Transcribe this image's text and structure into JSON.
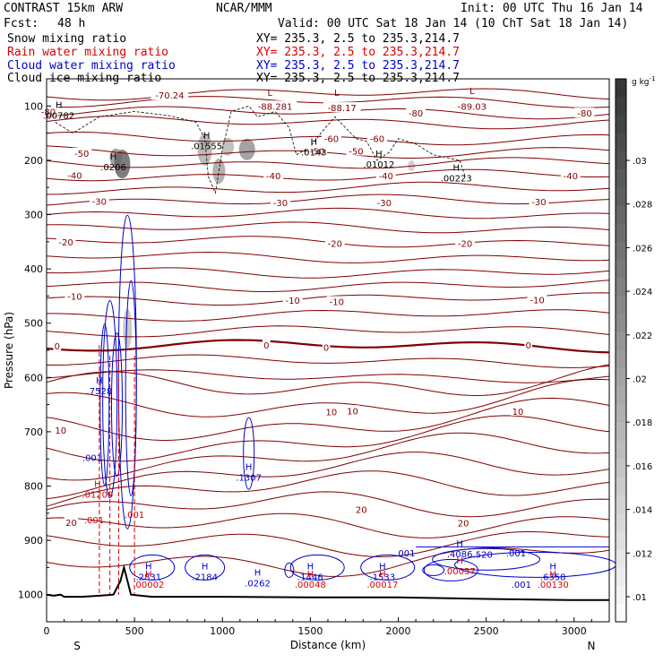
{
  "header": {
    "model": "CONTRAST 15km ARW",
    "org": "NCAR/MMM",
    "init": "Init: 00 UTC Thu 16 Jan 14",
    "fcst_label": "Fcst:",
    "fcst_value": "48 h",
    "valid": "Valid: 00 UTC Sat 18 Jan 14 (10 ChT Sat 18 Jan 14)",
    "fields": [
      {
        "name": "Snow mixing ratio",
        "xy": "XY= 235.3,  2.5 to 235.3,214.7",
        "color": "#000000"
      },
      {
        "name": "Rain water mixing ratio",
        "xy": "XY= 235.3,  2.5 to 235.3,214.7",
        "color": "#dd0000"
      },
      {
        "name": "Cloud water mixing ratio",
        "xy": "XY= 235.3,  2.5 to 235.3,214.7",
        "color": "#0000cc"
      },
      {
        "name": "Cloud ice mixing ratio",
        "xy": "XY= 235.3,  2.5 to 235.3,214.7",
        "color": "#000000"
      }
    ]
  },
  "chart_data": {
    "type": "cross-section",
    "xlabel": "Distance (km)",
    "ylabel": "Pressure (hPa)",
    "xlim": [
      0,
      3200
    ],
    "ylim": [
      1050,
      50
    ],
    "x_ticks": [
      0,
      500,
      1000,
      1500,
      2000,
      2500,
      3000
    ],
    "y_ticks": [
      100,
      200,
      300,
      400,
      500,
      600,
      700,
      800,
      900,
      1000
    ],
    "end_labels": {
      "left": "S",
      "right": "N"
    },
    "colorbar": {
      "unit": "g kg",
      "unit_exp": "-1",
      "ticks": [
        ".01",
        ".012",
        ".014",
        ".016",
        ".018",
        ".02",
        ".022",
        ".024",
        ".026",
        ".028",
        ".03"
      ]
    },
    "colors": {
      "temperature": "#800000",
      "cloud_water": "#0000cc",
      "rain": "#dd0000",
      "terrain": "#000000"
    },
    "temperature_labels": [
      {
        "text": "-70.24",
        "x": 700,
        "p": 80
      },
      {
        "text": "-88.281",
        "x": 1300,
        "p": 100
      },
      {
        "text": "-88.17",
        "x": 1680,
        "p": 103
      },
      {
        "text": "-89.03",
        "x": 2420,
        "p": 100
      },
      {
        "text": "-80",
        "x": 10,
        "p": 110
      },
      {
        "text": "-80",
        "x": 2100,
        "p": 113
      },
      {
        "text": "-80",
        "x": 3060,
        "p": 113
      },
      {
        "text": "-60",
        "x": 1620,
        "p": 160
      },
      {
        "text": "-60",
        "x": 1880,
        "p": 160
      },
      {
        "text": "-50",
        "x": 200,
        "p": 187
      },
      {
        "text": "-50",
        "x": 1540,
        "p": 183
      },
      {
        "text": "-50",
        "x": 1760,
        "p": 183
      },
      {
        "text": "-40",
        "x": 160,
        "p": 227
      },
      {
        "text": "-40",
        "x": 1290,
        "p": 228
      },
      {
        "text": "-40",
        "x": 1930,
        "p": 228
      },
      {
        "text": "-40",
        "x": 2980,
        "p": 228
      },
      {
        "text": "-30",
        "x": 300,
        "p": 275
      },
      {
        "text": "-30",
        "x": 1330,
        "p": 278
      },
      {
        "text": "-30",
        "x": 1920,
        "p": 278
      },
      {
        "text": "-30",
        "x": 2800,
        "p": 276
      },
      {
        "text": "-20",
        "x": 110,
        "p": 350
      },
      {
        "text": "-20",
        "x": 1640,
        "p": 353
      },
      {
        "text": "-20",
        "x": 2380,
        "p": 353
      },
      {
        "text": "-10",
        "x": 160,
        "p": 450
      },
      {
        "text": "-10",
        "x": 1400,
        "p": 458
      },
      {
        "text": "-10",
        "x": 1650,
        "p": 460
      },
      {
        "text": "-10",
        "x": 2790,
        "p": 457
      },
      {
        "text": "0",
        "x": 60,
        "p": 542
      },
      {
        "text": "0",
        "x": 1250,
        "p": 540
      },
      {
        "text": "0",
        "x": 1590,
        "p": 544
      },
      {
        "text": "0",
        "x": 2740,
        "p": 540
      },
      {
        "text": "10",
        "x": 80,
        "p": 697
      },
      {
        "text": "10",
        "x": 1620,
        "p": 663
      },
      {
        "text": "10",
        "x": 1740,
        "p": 661
      },
      {
        "text": "10",
        "x": 2680,
        "p": 662
      },
      {
        "text": "20",
        "x": 140,
        "p": 867
      },
      {
        "text": "20",
        "x": 1790,
        "p": 843
      },
      {
        "text": "20",
        "x": 2370,
        "p": 868
      }
    ],
    "extrema_labels": [
      {
        "mark": "H",
        "value": ".00782",
        "x": 70,
        "p": 110,
        "color": "#000000"
      },
      {
        "mark": "H",
        "value": ".0206",
        "x": 380,
        "p": 205,
        "color": "#000000"
      },
      {
        "mark": "H",
        "value": ".01555",
        "x": 910,
        "p": 166,
        "color": "#000000"
      },
      {
        "mark": "H",
        "value": ".0143",
        "x": 1520,
        "p": 178,
        "color": "#000000"
      },
      {
        "mark": "H",
        "value": ".01012",
        "x": 1890,
        "p": 200,
        "color": "#000000"
      },
      {
        "mark": "H",
        "value": ".00223",
        "x": 2330,
        "p": 226,
        "color": "#000000"
      },
      {
        "mark": "L",
        "value": "",
        "x": 1270,
        "p": 88,
        "color": "#800000"
      },
      {
        "mark": "L",
        "value": "",
        "x": 1650,
        "p": 88,
        "color": "#800000"
      },
      {
        "mark": "L",
        "value": "",
        "x": 2420,
        "p": 85,
        "color": "#800000"
      },
      {
        "mark": "H",
        "value": ".7528",
        "x": 300,
        "p": 618,
        "color": "#0000cc"
      },
      {
        "mark": "H",
        "value": ".1307",
        "x": 1150,
        "p": 777,
        "color": "#0000cc"
      },
      {
        "mark": "H",
        "value": ".2831",
        "x": 580,
        "p": 960,
        "color": "#0000cc"
      },
      {
        "mark": "H",
        "value": ".2184",
        "x": 900,
        "p": 960,
        "color": "#0000cc"
      },
      {
        "mark": "H",
        "value": ".0262",
        "x": 1200,
        "p": 972,
        "color": "#0000cc"
      },
      {
        "mark": "H",
        "value": ".1446",
        "x": 1500,
        "p": 960,
        "color": "#0000cc"
      },
      {
        "mark": "H",
        "value": ".1533",
        "x": 1910,
        "p": 960,
        "color": "#0000cc"
      },
      {
        "mark": "H",
        "value": ".4086",
        "x": 2350,
        "p": 918,
        "color": "#0000cc"
      },
      {
        "mark": "H",
        "value": ".6358",
        "x": 2880,
        "p": 960,
        "color": "#0000cc"
      },
      {
        "mark": "H",
        "value": ".01209",
        "x": 290,
        "p": 808,
        "color": "#dd0000"
      },
      {
        "mark": "H",
        "value": ".00002",
        "x": 580,
        "p": 974,
        "color": "#dd0000"
      },
      {
        "mark": "H",
        "value": ".00048",
        "x": 1500,
        "p": 974,
        "color": "#dd0000"
      },
      {
        "mark": "H",
        "value": ".00017",
        "x": 1910,
        "p": 974,
        "color": "#dd0000"
      },
      {
        "mark": "H",
        "value": ".00037",
        "x": 2350,
        "p": 949,
        "color": "#dd0000"
      },
      {
        "mark": "H",
        "value": ".00130",
        "x": 2880,
        "p": 974,
        "color": "#dd0000"
      }
    ],
    "contour_value_labels": [
      {
        "text": ".001",
        "x": 260,
        "p": 747,
        "color": "#0000cc"
      },
      {
        "text": ".001",
        "x": 2040,
        "p": 923,
        "color": "#0000cc"
      },
      {
        "text": ".001",
        "x": 2670,
        "p": 923,
        "color": "#0000cc"
      },
      {
        "text": ".001",
        "x": 2700,
        "p": 981,
        "color": "#0000cc"
      },
      {
        "text": ".001",
        "x": 270,
        "p": 862,
        "color": "#dd0000"
      },
      {
        "text": ".001",
        "x": 500,
        "p": 852,
        "color": "#dd0000"
      },
      {
        "text": ".520",
        "x": 2480,
        "p": 925,
        "color": "#0000cc"
      }
    ]
  }
}
